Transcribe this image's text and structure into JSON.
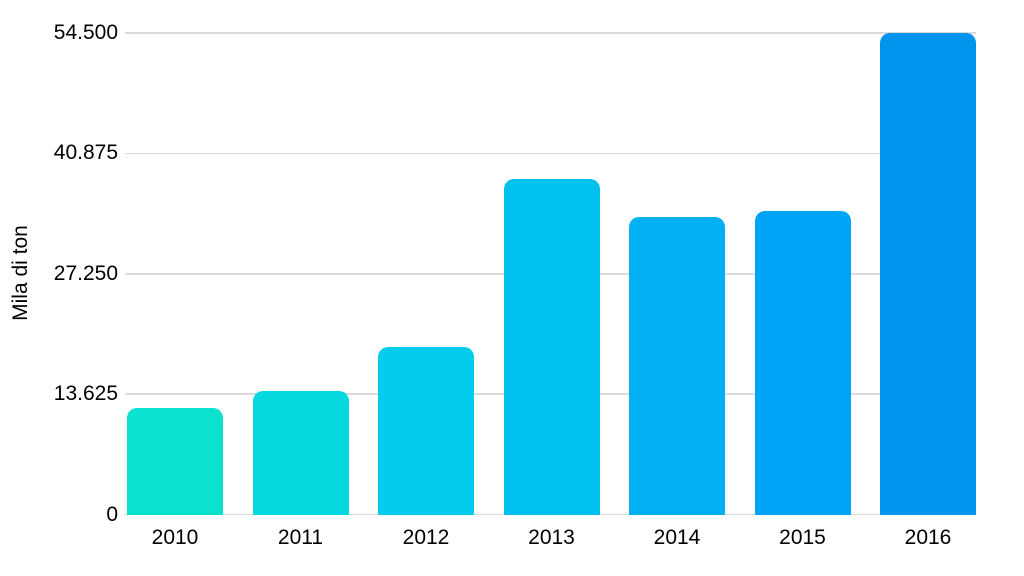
{
  "chart_data": {
    "type": "bar",
    "title": "",
    "xlabel": "",
    "ylabel": "Mila di ton",
    "categories": [
      "2010",
      "2011",
      "2012",
      "2013",
      "2014",
      "2015",
      "2016"
    ],
    "values": [
      12000,
      14000,
      19000,
      38000,
      33700,
      34300,
      54500
    ],
    "bar_colors": [
      "#0ae2cf",
      "#06d8df",
      "#03ccec",
      "#00c0f0",
      "#01b1f4",
      "#00a4f6",
      "#0295ed"
    ],
    "ylim": [
      0,
      54500
    ],
    "yticks": [
      {
        "value": 0,
        "label": "0"
      },
      {
        "value": 13625,
        "label": "13.625"
      },
      {
        "value": 27250,
        "label": "27.250"
      },
      {
        "value": 40875,
        "label": "40.875"
      },
      {
        "value": 54500,
        "label": "54.500"
      }
    ],
    "grid": true,
    "legend": "none",
    "background_color": "#ffffff",
    "gridline_color": "#dadada",
    "text_color": "#000000"
  }
}
